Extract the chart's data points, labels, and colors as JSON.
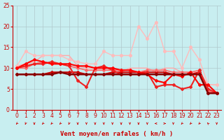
{
  "title": "",
  "xlabel": "Vent moyen/en rafales ( km/h )",
  "background_color": "#c8eef0",
  "grid_color": "#b0c8cc",
  "xlim": [
    -0.5,
    23.5
  ],
  "ylim": [
    0,
    25
  ],
  "xticks": [
    0,
    1,
    2,
    3,
    4,
    5,
    6,
    7,
    8,
    9,
    10,
    11,
    12,
    13,
    14,
    15,
    16,
    17,
    18,
    19,
    20,
    21,
    22,
    23
  ],
  "yticks": [
    0,
    5,
    10,
    15,
    20,
    25
  ],
  "series": [
    {
      "x": [
        0,
        1,
        2,
        3,
        4,
        5,
        6,
        7,
        8,
        9,
        10,
        11,
        12,
        13,
        14,
        15,
        16,
        17,
        18,
        19,
        20,
        21,
        22,
        23
      ],
      "y": [
        10.5,
        11.0,
        11.5,
        13.0,
        13.0,
        13.0,
        13.0,
        10.5,
        10.0,
        10.0,
        10.0,
        10.0,
        9.0,
        10.0,
        10.0,
        10.0,
        9.0,
        10.0,
        10.0,
        9.0,
        9.0,
        9.0,
        6.0,
        6.0
      ],
      "color": "#ffaaaa",
      "lw": 1.0,
      "marker": null
    },
    {
      "x": [
        0,
        1,
        2,
        3,
        4,
        5,
        6,
        7,
        8,
        9,
        10,
        11,
        12,
        13,
        14,
        15,
        16,
        17,
        18,
        19,
        20,
        21,
        22,
        23
      ],
      "y": [
        10.5,
        14.0,
        13.0,
        13.0,
        13.0,
        13.0,
        12.0,
        11.5,
        11.0,
        11.0,
        14.0,
        13.0,
        13.0,
        13.0,
        20.0,
        17.0,
        21.0,
        14.0,
        14.0,
        10.0,
        15.0,
        12.0,
        6.0,
        6.0
      ],
      "color": "#ffbbbb",
      "lw": 1.0,
      "marker": "o",
      "ms": 2.5
    },
    {
      "x": [
        0,
        1,
        2,
        3,
        4,
        5,
        6,
        7,
        8,
        9,
        10,
        11,
        12,
        13,
        14,
        15,
        16,
        17,
        18,
        19,
        20,
        21,
        22,
        23
      ],
      "y": [
        8.5,
        8.5,
        8.5,
        8.5,
        9.0,
        9.0,
        9.0,
        9.0,
        8.5,
        8.5,
        8.5,
        9.0,
        9.0,
        9.0,
        9.0,
        9.0,
        9.0,
        9.0,
        8.5,
        8.5,
        8.5,
        9.0,
        4.0,
        4.0
      ],
      "color": "#cc0000",
      "lw": 1.5,
      "marker": "D",
      "ms": 2.0
    },
    {
      "x": [
        0,
        1,
        2,
        3,
        4,
        5,
        6,
        7,
        8,
        9,
        10,
        11,
        12,
        13,
        14,
        15,
        16,
        17,
        18,
        19,
        20,
        21,
        22,
        23
      ],
      "y": [
        10.0,
        10.0,
        11.0,
        11.5,
        11.0,
        11.0,
        10.5,
        10.0,
        9.5,
        9.5,
        9.5,
        9.5,
        9.5,
        9.5,
        9.0,
        9.5,
        9.5,
        9.5,
        9.0,
        9.0,
        9.0,
        9.5,
        4.5,
        4.0
      ],
      "color": "#ff6666",
      "lw": 1.2,
      "marker": "D",
      "ms": 2.0
    },
    {
      "x": [
        0,
        1,
        2,
        3,
        4,
        5,
        6,
        7,
        8,
        9,
        10,
        11,
        12,
        13,
        14,
        15,
        16,
        17,
        18,
        19,
        20,
        21,
        22,
        23
      ],
      "y": [
        10.0,
        10.5,
        11.0,
        11.0,
        11.5,
        11.0,
        10.5,
        7.0,
        5.5,
        10.0,
        10.5,
        9.5,
        8.5,
        8.5,
        8.5,
        9.0,
        5.5,
        6.0,
        6.0,
        5.0,
        5.5,
        9.5,
        5.0,
        4.0
      ],
      "color": "#ee2222",
      "lw": 1.5,
      "marker": "D",
      "ms": 2.0
    },
    {
      "x": [
        0,
        1,
        2,
        3,
        4,
        5,
        6,
        7,
        8,
        9,
        10,
        11,
        12,
        13,
        14,
        15,
        16,
        17,
        18,
        19,
        20,
        21,
        22,
        23
      ],
      "y": [
        10.0,
        11.0,
        12.0,
        11.5,
        11.0,
        11.0,
        11.0,
        10.5,
        10.5,
        10.0,
        10.0,
        10.0,
        9.5,
        9.5,
        9.0,
        8.5,
        7.0,
        6.5,
        8.5,
        8.0,
        9.0,
        6.0,
        6.0,
        4.0
      ],
      "color": "#ff0000",
      "lw": 1.5,
      "marker": "D",
      "ms": 2.0
    },
    {
      "x": [
        0,
        1,
        2,
        3,
        4,
        5,
        6,
        7,
        8,
        9,
        10,
        11,
        12,
        13,
        14,
        15,
        16,
        17,
        18,
        19,
        20,
        21,
        22,
        23
      ],
      "y": [
        8.5,
        8.5,
        8.5,
        8.5,
        8.5,
        9.0,
        8.5,
        8.5,
        8.5,
        8.5,
        8.5,
        8.5,
        8.5,
        8.5,
        8.5,
        8.5,
        8.5,
        8.5,
        8.5,
        8.5,
        8.5,
        8.5,
        4.0,
        4.0
      ],
      "color": "#880000",
      "lw": 1.8,
      "marker": "D",
      "ms": 2.0
    }
  ],
  "arrow_angles_deg": [
    225,
    202,
    180,
    225,
    225,
    225,
    202,
    180,
    180,
    180,
    180,
    180,
    180,
    180,
    180,
    180,
    270,
    90,
    180,
    225,
    225,
    225,
    315,
    180
  ],
  "xlabel_color": "#cc0000",
  "xlabel_fontsize": 6.5,
  "tick_fontsize": 5.5,
  "tick_color": "#cc0000",
  "arrow_color": "#cc0000"
}
